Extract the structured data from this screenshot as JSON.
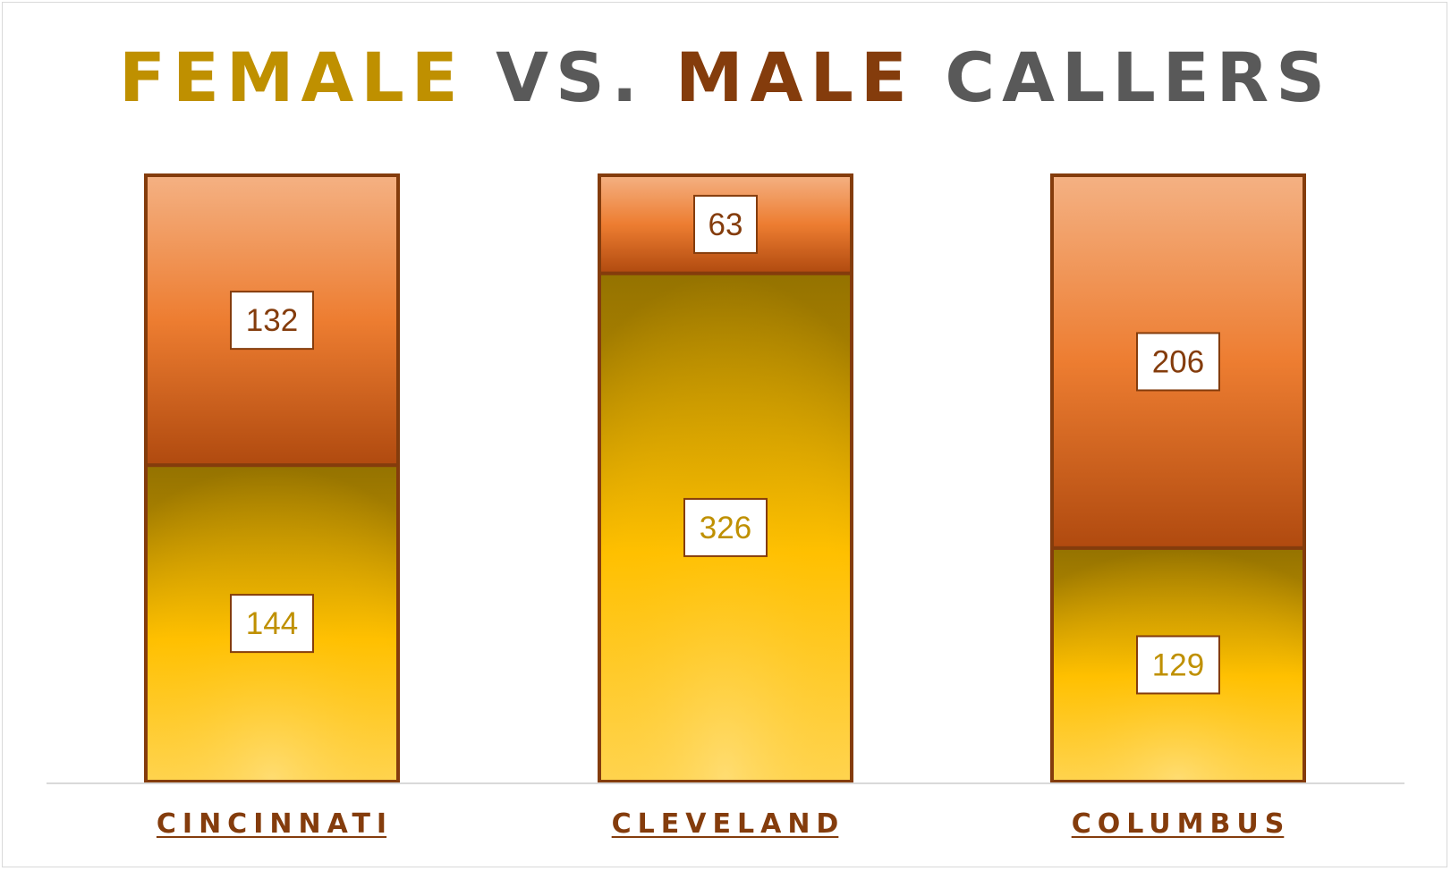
{
  "title": {
    "part1": "FEMALE",
    "part2": "VS.",
    "part3": "MALE",
    "part4": "CALLERS"
  },
  "colors": {
    "female_title": "#BF9000",
    "male_title": "#843C0C",
    "neutral_title": "#595959",
    "bar_border": "#843C0C",
    "female_label": "#BF9000",
    "male_label": "#843C0C",
    "category_label": "#843C0C",
    "axis": "#d9d9d9"
  },
  "chart_data": {
    "type": "bar",
    "stacked": true,
    "categories": [
      "CINCINNATI",
      "CLEVELAND",
      "COLUMBUS"
    ],
    "series": [
      {
        "key": "female",
        "values": [
          144,
          326,
          129
        ]
      },
      {
        "key": "male",
        "values": [
          132,
          63,
          206
        ]
      }
    ],
    "normalized_100_percent": true,
    "grid": false,
    "legend": "none"
  }
}
